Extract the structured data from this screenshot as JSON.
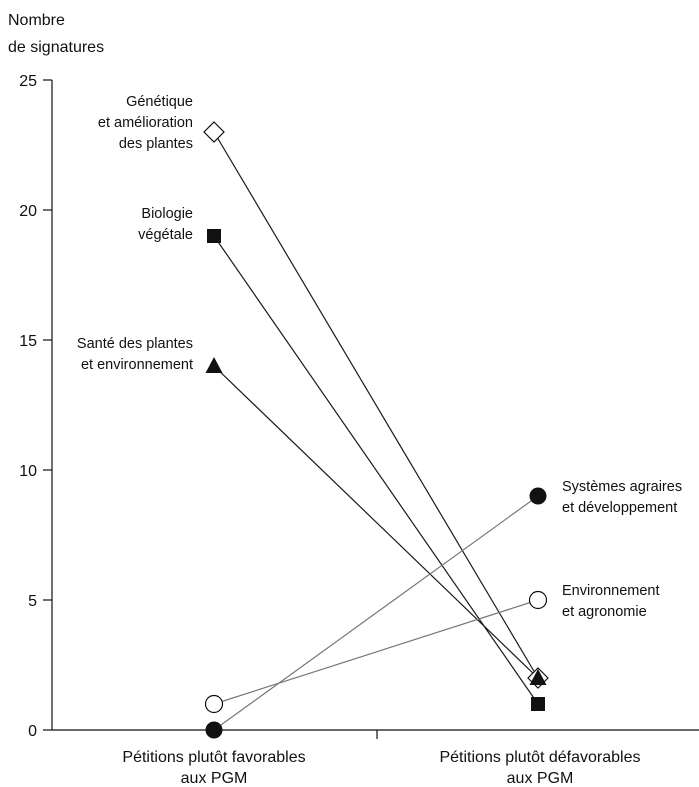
{
  "chart_data": {
    "type": "line",
    "ylabel_lines": [
      "Nombre",
      "de signatures"
    ],
    "xlabel": "",
    "categories": [
      [
        "Pétitions plutôt favorables",
        "aux PGM"
      ],
      [
        "Pétitions plutôt défavorables",
        "aux PGM"
      ]
    ],
    "ylim": [
      0,
      25
    ],
    "yticks": [
      0,
      5,
      10,
      15,
      20,
      25
    ],
    "grid": false,
    "series": [
      {
        "name": "Génétique et amélioration des plantes",
        "label_lines": [
          "Génétique",
          "et amélioration",
          "des plantes"
        ],
        "label_side": "left",
        "marker": "diamond-open",
        "line_color": "#1a1a1a",
        "values": [
          23,
          2
        ]
      },
      {
        "name": "Biologie végétale",
        "label_lines": [
          "Biologie",
          "végétale"
        ],
        "label_side": "left",
        "marker": "square-filled",
        "line_color": "#1a1a1a",
        "values": [
          19,
          1
        ]
      },
      {
        "name": "Santé des plantes et environnement",
        "label_lines": [
          "Santé des plantes",
          "et environnement"
        ],
        "label_side": "left",
        "marker": "triangle-filled",
        "line_color": "#1a1a1a",
        "values": [
          14,
          2
        ]
      },
      {
        "name": "Systèmes agraires et développement",
        "label_lines": [
          "Systèmes agraires",
          "et développement"
        ],
        "label_side": "right",
        "marker": "circle-filled",
        "line_color": "#777777",
        "values": [
          0,
          9
        ]
      },
      {
        "name": "Environnement et agronomie",
        "label_lines": [
          "Environnement",
          "et agronomie"
        ],
        "label_side": "right",
        "marker": "circle-open",
        "line_color": "#777777",
        "values": [
          1,
          5
        ]
      }
    ]
  }
}
